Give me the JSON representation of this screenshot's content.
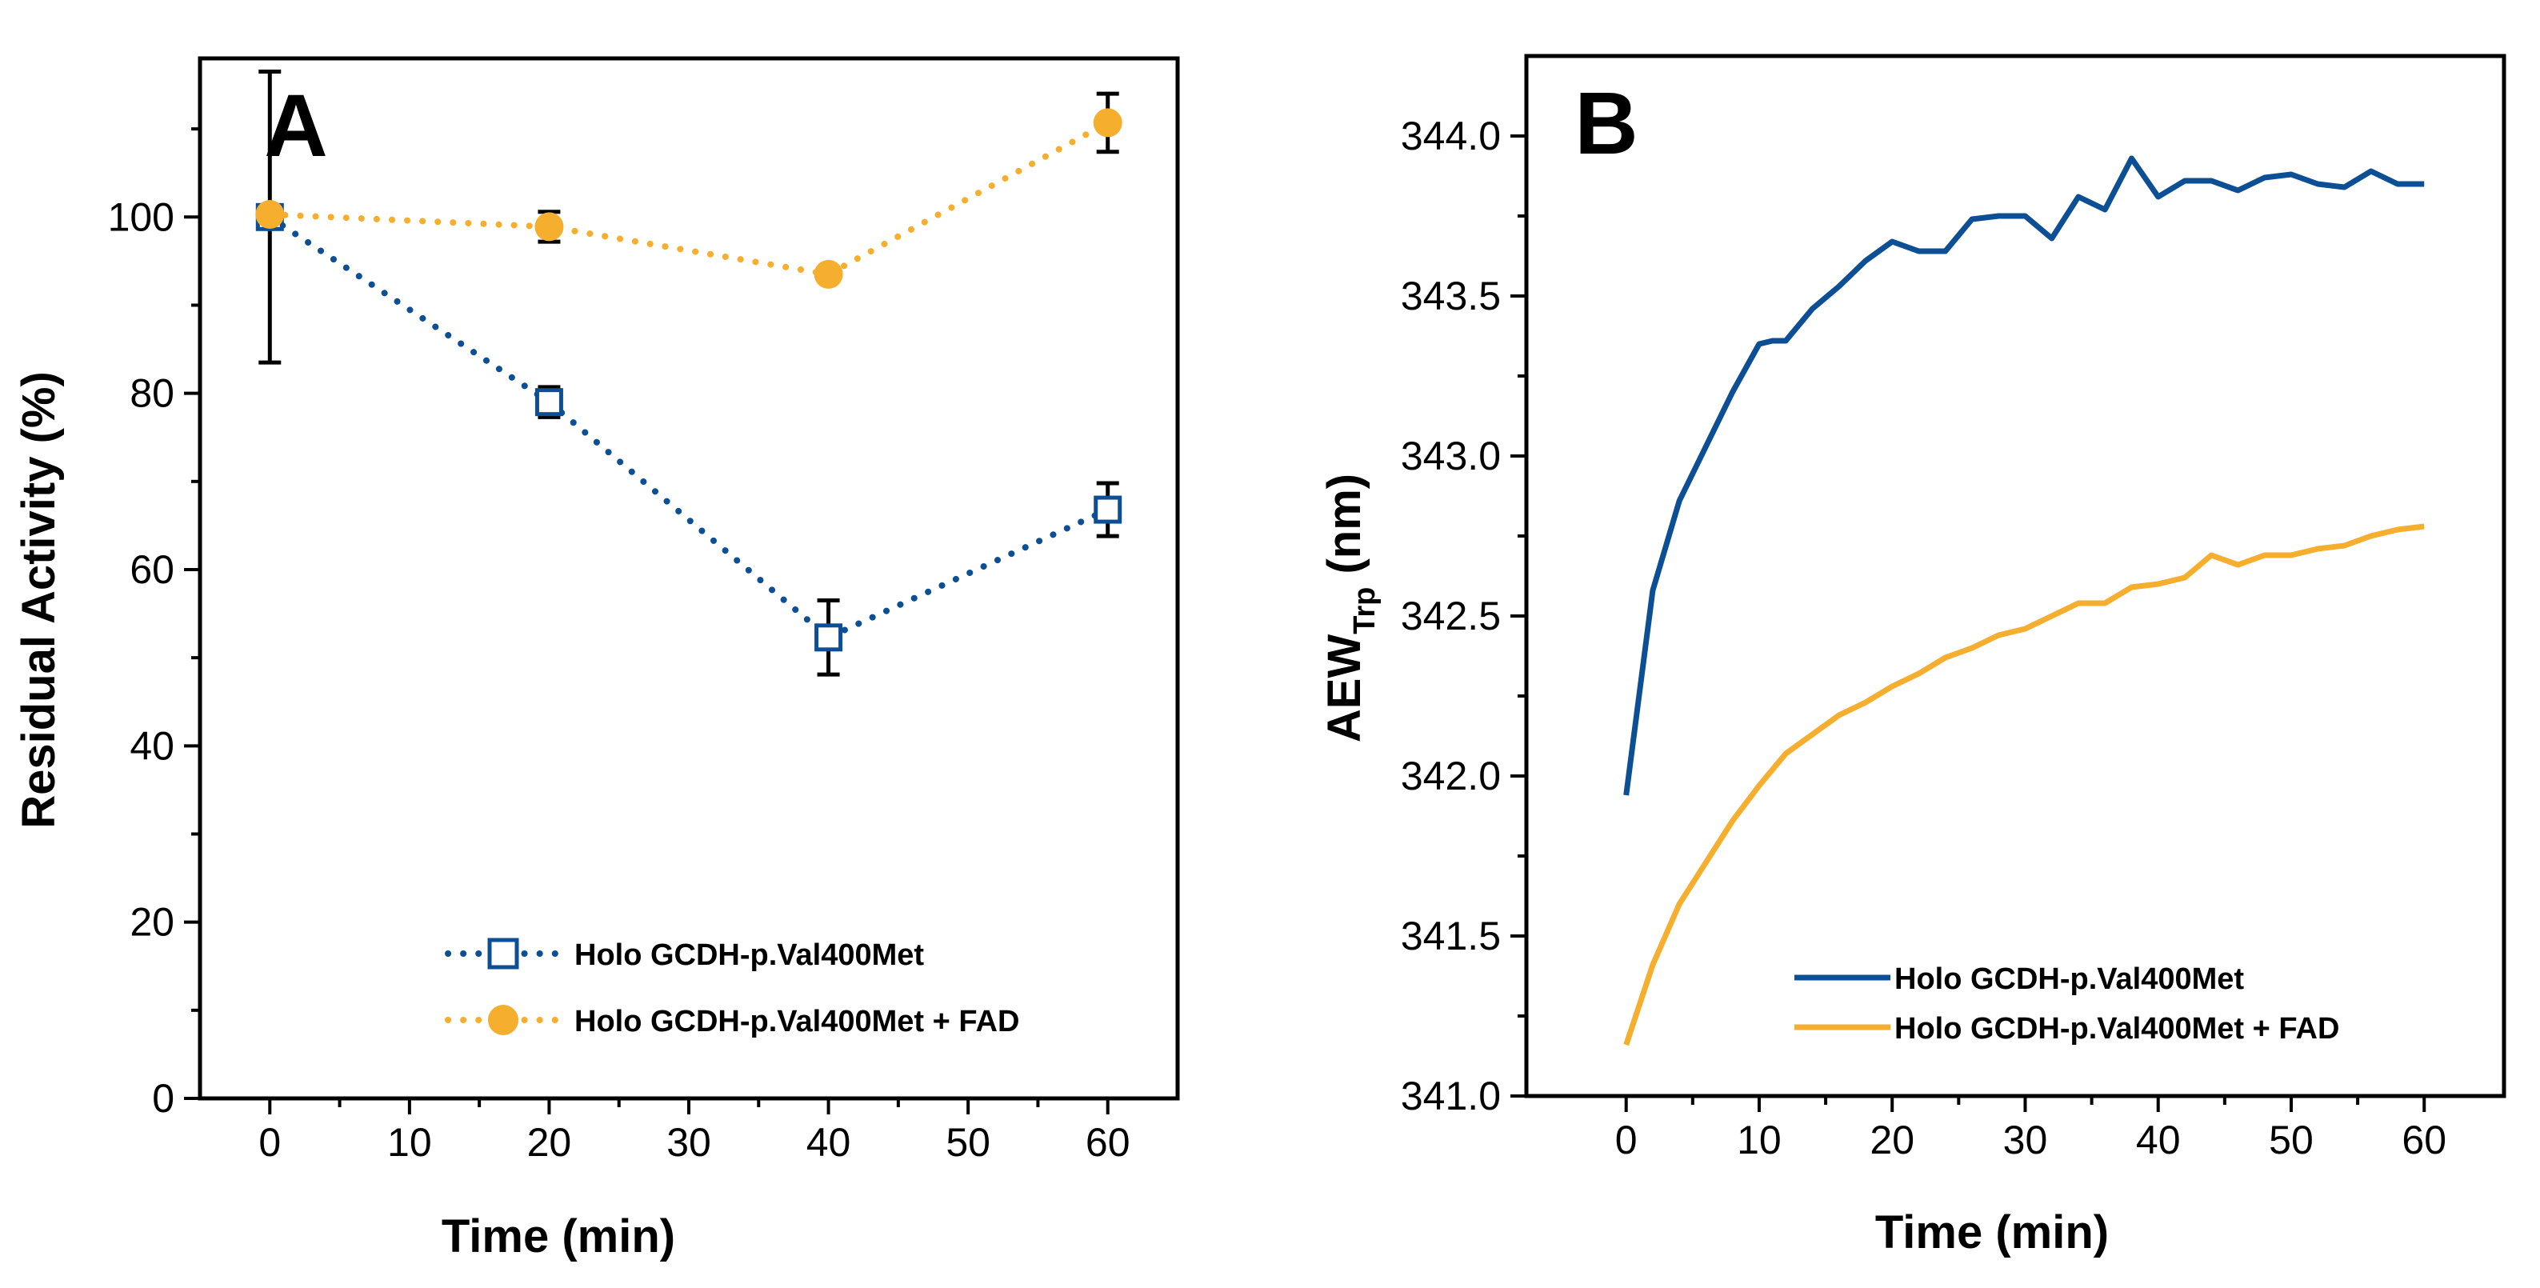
{
  "colors": {
    "series1": "#0d4f94",
    "series2": "#f5ae2e"
  },
  "chart_data": [
    {
      "panel": "A",
      "type": "scatter",
      "title": "",
      "xlabel": "Time (min)",
      "ylabel": "Residual Activity (%)",
      "xlim": [
        -5,
        65
      ],
      "ylim": [
        0,
        118
      ],
      "xticks": [
        0,
        10,
        20,
        30,
        40,
        50,
        60
      ],
      "yticks": [
        0,
        20,
        40,
        60,
        80,
        100
      ],
      "xtick_labels": [
        "0",
        "10",
        "20",
        "30",
        "40",
        "50",
        "60"
      ],
      "ytick_labels": [
        "0",
        "20",
        "40",
        "60",
        "80",
        "100"
      ],
      "legend_position": "bottom-right",
      "series": [
        {
          "name": "Holo GCDH-p.Val400Met",
          "marker": "open-square",
          "line": "dotted",
          "color": "#0d4f94",
          "x": [
            0,
            20,
            40,
            60
          ],
          "y": [
            100,
            79,
            52.3,
            66.8
          ],
          "err": [
            16.5,
            1.7,
            4.2,
            3
          ]
        },
        {
          "name": "Holo GCDH-p.Val400Met + FAD",
          "marker": "filled-circle",
          "line": "dotted",
          "color": "#f5ae2e",
          "x": [
            0,
            20,
            40,
            60
          ],
          "y": [
            100.3,
            98.9,
            93.5,
            110.7
          ],
          "err": [
            0,
            1.7,
            0,
            3.3
          ]
        }
      ]
    },
    {
      "panel": "B",
      "type": "line",
      "title": "",
      "xlabel": "Time (min)",
      "ylabel_main": "AEW",
      "ylabel_sub": "Trp",
      "ylabel_unit": " (nm)",
      "xlim": [
        -7.5,
        66
      ],
      "ylim": [
        341,
        344.25
      ],
      "xticks": [
        0,
        10,
        20,
        30,
        40,
        50,
        60
      ],
      "yticks": [
        341.0,
        341.5,
        342.0,
        342.5,
        343.0,
        343.5,
        344.0
      ],
      "xtick_labels": [
        "0",
        "10",
        "20",
        "30",
        "40",
        "50",
        "60"
      ],
      "ytick_labels": [
        "341.0",
        "341.5",
        "342.0",
        "342.5",
        "343.0",
        "343.5",
        "344.0"
      ],
      "legend_position": "bottom-right",
      "series": [
        {
          "name": "Holo GCDH-p.Val400Met",
          "color": "#0d4f94",
          "x": [
            0,
            2,
            4,
            6,
            8,
            10,
            11,
            12,
            14,
            16,
            18,
            20,
            22,
            24,
            26,
            28,
            30,
            32,
            34,
            36,
            38,
            40,
            42,
            44,
            46,
            48,
            50,
            52,
            54,
            56,
            58,
            60
          ],
          "y": [
            341.94,
            342.58,
            342.86,
            343.03,
            343.2,
            343.35,
            343.36,
            343.36,
            343.46,
            343.53,
            343.61,
            343.67,
            343.64,
            343.64,
            343.74,
            343.75,
            343.75,
            343.68,
            343.81,
            343.77,
            343.93,
            343.81,
            343.86,
            343.86,
            343.83,
            343.87,
            343.88,
            343.85,
            343.84,
            343.89,
            343.85,
            343.85
          ]
        },
        {
          "name": "Holo GCDH-p.Val400Met + FAD",
          "color": "#f5ae2e",
          "x": [
            0,
            2,
            4,
            6,
            8,
            10,
            12,
            14,
            16,
            18,
            20,
            22,
            24,
            26,
            28,
            30,
            32,
            34,
            36,
            38,
            40,
            42,
            44,
            46,
            48,
            50,
            52,
            54,
            56,
            58,
            60
          ],
          "y": [
            341.16,
            341.41,
            341.6,
            341.73,
            341.86,
            341.97,
            342.07,
            342.13,
            342.19,
            342.23,
            342.28,
            342.32,
            342.37,
            342.4,
            342.44,
            342.46,
            342.5,
            342.54,
            342.54,
            342.59,
            342.6,
            342.62,
            342.69,
            342.66,
            342.69,
            342.69,
            342.71,
            342.72,
            342.75,
            342.77,
            342.78
          ]
        }
      ]
    }
  ]
}
